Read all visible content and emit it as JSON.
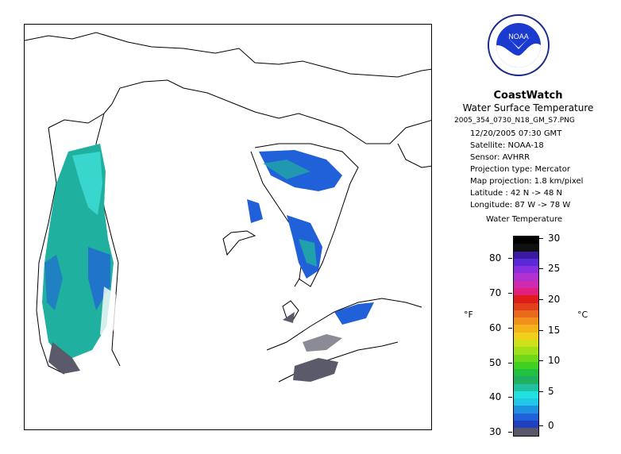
{
  "product": {
    "title": "CoastWatch",
    "subtitle": "Water Surface Temperature",
    "filename": "2005_354_0730_N18_GM_S7.PNG",
    "datetime": "12/20/2005    07:30 GMT",
    "satellite": "Satellite: NOAA-18",
    "sensor": "Sensor: AVHRR",
    "projection_type": "Projection type:  Mercator",
    "map_projection": "Map projection: 1.8 km/pixel",
    "latitude": "Latitude : 42 N -> 48 N",
    "longitude": "Longitude: 87 W -> 78 W"
  },
  "logo": {
    "text": "NOAA",
    "icon": "noaa-logo-icon"
  },
  "legend": {
    "title": "Water Temperature",
    "unit_f": "°F",
    "unit_c": "°C",
    "fahrenheit_ticks": [
      "80",
      "70",
      "60",
      "50",
      "40",
      "30"
    ],
    "celsius_ticks": [
      "30",
      "25",
      "20",
      "15",
      "10",
      "5",
      "0"
    ],
    "colors": [
      "#000000",
      "#101010",
      "#3a1aa0",
      "#5b2ad8",
      "#8a2ee0",
      "#b030d0",
      "#d02ab0",
      "#e0207a",
      "#e01b1b",
      "#e2401a",
      "#e86a1a",
      "#f0901a",
      "#f5b21a",
      "#f0d01a",
      "#d0e01a",
      "#a0e01a",
      "#70d81a",
      "#40d020",
      "#20c040",
      "#20b060",
      "#20c0a0",
      "#20e0e0",
      "#20c8e8",
      "#2090e0",
      "#2060d8",
      "#2040c0",
      "#585868"
    ]
  },
  "map": {
    "region": "Great Lakes",
    "colors": {
      "land_line": "#000000",
      "teal": "#20b0a0",
      "cyan": "#40e0d8",
      "blue": "#2060d8",
      "gray": "#5a5a6a"
    }
  }
}
